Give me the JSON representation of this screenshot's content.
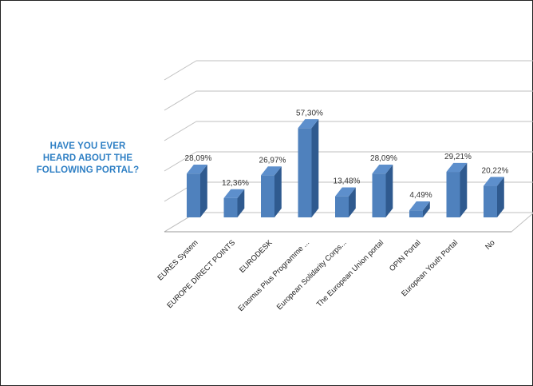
{
  "side_title": {
    "line1": "HAVE YOU EVER",
    "line2": "HEARD ABOUT THE",
    "line3": "FOLLOWING PORTAL?"
  },
  "colors": {
    "bar_front": "#4f81bd",
    "bar_top": "#5d8fcc",
    "bar_side": "#2f5a8f",
    "grid": "#bfbfbf",
    "title": "#2e7fc4"
  },
  "chart_data": {
    "type": "bar",
    "three_d": true,
    "title": "",
    "xlabel": "",
    "ylabel": "",
    "grid": true,
    "categories": [
      "EURES System",
      "EUROPE DIRECT POINTS",
      "EURODESK",
      "Erasmus Plus Programme ...",
      "European Solidarity Corps...",
      "The European Union portal",
      "OPIN Portal",
      "European Youth Portal",
      "No"
    ],
    "values": [
      28.09,
      12.36,
      26.97,
      57.3,
      13.48,
      28.09,
      4.49,
      29.21,
      20.22
    ],
    "value_labels": [
      "28,09%",
      "12,36%",
      "26,97%",
      "57,30%",
      "13,48%",
      "28,09%",
      "4,49%",
      "29,21%",
      "20,22%"
    ]
  }
}
